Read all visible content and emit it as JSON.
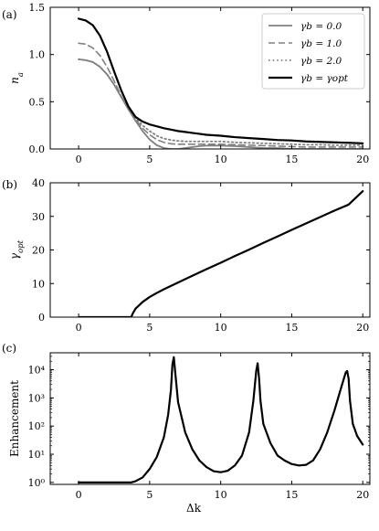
{
  "chart_data": [
    {
      "panel_label": "(a)",
      "type": "line",
      "ylabel": "n_a",
      "xlabel": "",
      "xlim": [
        -2,
        20.5
      ],
      "ylim": [
        0,
        1.5
      ],
      "xticks": [
        0,
        5,
        10,
        15,
        20
      ],
      "yticks": [
        0.0,
        0.5,
        1.0,
        1.5
      ],
      "ytick_labels": [
        "0.0",
        "0.5",
        "1.0",
        "1.5"
      ],
      "legend_position": "top-right",
      "series": [
        {
          "name": "γb = 0.0",
          "style": "solid",
          "color": "#808080",
          "width": 1.8,
          "x": [
            0,
            0.5,
            1,
            1.5,
            2,
            2.5,
            3,
            3.5,
            4,
            4.5,
            5,
            5.5,
            6,
            6.5,
            7,
            7.5,
            8,
            8.5,
            9,
            9.5,
            10,
            11,
            12,
            13,
            14,
            15,
            16,
            17,
            18,
            19,
            20
          ],
          "y": [
            0.95,
            0.94,
            0.92,
            0.87,
            0.79,
            0.68,
            0.55,
            0.42,
            0.3,
            0.19,
            0.1,
            0.04,
            0.01,
            0.0,
            0.0,
            0.01,
            0.02,
            0.03,
            0.035,
            0.035,
            0.035,
            0.03,
            0.02,
            0.01,
            0.01,
            0.0,
            0.0,
            0.0,
            0.0,
            0.0,
            0.0
          ]
        },
        {
          "name": "γb = 1.0",
          "style": "dashed",
          "color": "#808080",
          "width": 1.6,
          "x": [
            0,
            0.5,
            1,
            1.5,
            2,
            2.5,
            3,
            3.5,
            4,
            4.5,
            5,
            5.5,
            6,
            6.5,
            7,
            7.5,
            8,
            8.5,
            9,
            9.5,
            10,
            11,
            12,
            13,
            14,
            15,
            16,
            17,
            18,
            19,
            20
          ],
          "y": [
            1.12,
            1.11,
            1.07,
            0.99,
            0.87,
            0.72,
            0.56,
            0.42,
            0.31,
            0.22,
            0.15,
            0.1,
            0.07,
            0.055,
            0.05,
            0.05,
            0.05,
            0.05,
            0.05,
            0.05,
            0.05,
            0.045,
            0.04,
            0.035,
            0.03,
            0.025,
            0.02,
            0.02,
            0.02,
            0.02,
            0.02
          ]
        },
        {
          "name": "γb = 2.0",
          "style": "dotted",
          "color": "#808080",
          "width": 1.8,
          "x": [
            0,
            0.5,
            1,
            1.5,
            2,
            2.5,
            3,
            3.5,
            4,
            4.5,
            5,
            5.5,
            6,
            6.5,
            7,
            7.5,
            8,
            8.5,
            9,
            9.5,
            10,
            11,
            12,
            13,
            14,
            15,
            16,
            17,
            18,
            19,
            20
          ],
          "y": [
            0.95,
            0.94,
            0.92,
            0.87,
            0.79,
            0.68,
            0.55,
            0.43,
            0.33,
            0.25,
            0.19,
            0.14,
            0.11,
            0.095,
            0.085,
            0.08,
            0.08,
            0.08,
            0.08,
            0.08,
            0.08,
            0.07,
            0.065,
            0.06,
            0.055,
            0.05,
            0.045,
            0.045,
            0.04,
            0.04,
            0.04
          ]
        },
        {
          "name": "γb = γopt",
          "style": "solid",
          "color": "#000000",
          "width": 2.2,
          "x": [
            0,
            0.5,
            1,
            1.5,
            2,
            2.5,
            3,
            3.5,
            4,
            4.5,
            5,
            5.5,
            6,
            6.5,
            7,
            7.5,
            8,
            8.5,
            9,
            9.5,
            10,
            11,
            12,
            13,
            14,
            15,
            16,
            17,
            18,
            19,
            20
          ],
          "y": [
            1.38,
            1.36,
            1.31,
            1.2,
            1.03,
            0.82,
            0.62,
            0.45,
            0.34,
            0.29,
            0.26,
            0.24,
            0.22,
            0.205,
            0.19,
            0.18,
            0.17,
            0.16,
            0.15,
            0.145,
            0.14,
            0.125,
            0.115,
            0.105,
            0.095,
            0.09,
            0.08,
            0.075,
            0.07,
            0.065,
            0.06
          ]
        }
      ]
    },
    {
      "panel_label": "(b)",
      "type": "line",
      "ylabel": "γ_opt",
      "xlabel": "",
      "xlim": [
        -2,
        20.5
      ],
      "ylim": [
        0,
        40
      ],
      "xticks": [
        0,
        5,
        10,
        15,
        20
      ],
      "yticks": [
        0,
        10,
        20,
        30,
        40
      ],
      "ytick_labels": [
        "0",
        "10",
        "20",
        "30",
        "40"
      ],
      "series": [
        {
          "name": "",
          "style": "solid",
          "color": "#000000",
          "width": 2.2,
          "x": [
            0,
            1,
            2,
            3,
            3.7,
            3.8,
            4,
            4.5,
            5,
            5.5,
            6,
            7,
            8,
            9,
            10,
            11,
            12,
            13,
            14,
            15,
            16,
            17,
            18,
            19,
            20
          ],
          "y": [
            0,
            0,
            0,
            0,
            0,
            1.0,
            2.5,
            4.5,
            6.0,
            7.2,
            8.3,
            10.3,
            12.3,
            14.3,
            16.2,
            18.2,
            20.1,
            22.1,
            24.0,
            26.0,
            27.9,
            29.8,
            31.7,
            33.5,
            37.5
          ]
        }
      ]
    },
    {
      "panel_label": "(c)",
      "type": "line",
      "yscale": "log",
      "ylabel": "Enhancement",
      "xlabel": "Δk",
      "xlim": [
        -2,
        20.5
      ],
      "ylim": [
        1,
        40000
      ],
      "xticks": [
        0,
        5,
        10,
        15,
        20
      ],
      "yticks": [
        1,
        10,
        100,
        1000,
        10000
      ],
      "ytick_labels": [
        "10⁰",
        "10¹",
        "10²",
        "10³",
        "10⁴"
      ],
      "series": [
        {
          "name": "",
          "style": "solid",
          "color": "#000000",
          "width": 2.2,
          "x": [
            0,
            1,
            2,
            3,
            3.7,
            4,
            4.5,
            5,
            5.5,
            6,
            6.3,
            6.5,
            6.6,
            6.7,
            6.8,
            7,
            7.5,
            8,
            8.5,
            9,
            9.5,
            10,
            10.5,
            11,
            11.5,
            12,
            12.3,
            12.5,
            12.6,
            12.7,
            12.8,
            13,
            13.5,
            14,
            14.5,
            15,
            15.5,
            16,
            16.5,
            17,
            17.5,
            18,
            18.5,
            18.8,
            18.9,
            19,
            19.1,
            19.3,
            19.6,
            20
          ],
          "y": [
            1,
            1,
            1,
            1,
            1,
            1.1,
            1.5,
            3,
            8,
            40,
            250,
            2000,
            15000,
            28000,
            8000,
            700,
            60,
            15,
            6,
            3.5,
            2.5,
            2.3,
            2.6,
            4,
            9,
            60,
            800,
            9000,
            17000,
            5000,
            800,
            120,
            25,
            9,
            6,
            4.5,
            4,
            4.2,
            6,
            15,
            60,
            350,
            2500,
            8000,
            9000,
            5000,
            800,
            120,
            45,
            22
          ]
        }
      ]
    }
  ]
}
